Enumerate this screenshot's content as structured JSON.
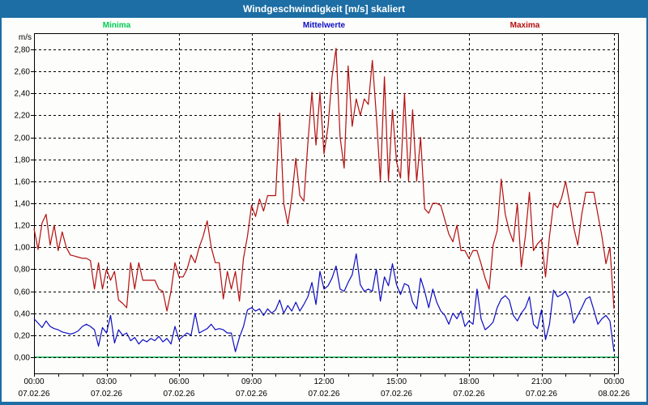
{
  "window": {
    "title": "Windgeschwindigkeit [m/s] skaliert"
  },
  "colors": {
    "titlebar": "#1c6ea4",
    "frame": "#1c6ea4",
    "background": "#fdfdfb",
    "grid": "#000000",
    "minima": "#00b54e",
    "minima_legend": "#00cc55",
    "mittelwerte": "#0d0dc4",
    "maxima": "#b40f0f"
  },
  "legend": [
    {
      "label": "Minima"
    },
    {
      "label": "Mittelwerte"
    },
    {
      "label": "Maxima"
    }
  ],
  "chart_data": {
    "type": "line",
    "title": "Windgeschwindigkeit [m/s] skaliert",
    "xlabel": "",
    "ylabel": "m/s",
    "grid": true,
    "legend_position": "top",
    "ylim": [
      0.0,
      2.8
    ],
    "y_axis": {
      "unit": "m/s",
      "min": 0.0,
      "max": 2.8,
      "tick_step": 0.2,
      "tick_labels": [
        "0,00",
        "0,20",
        "0,40",
        "0,60",
        "0,80",
        "1,00",
        "1,20",
        "1,40",
        "1,60",
        "1,80",
        "2,00",
        "2,20",
        "2,40",
        "2,60",
        "2,80"
      ]
    },
    "x_axis": {
      "minor_tick_hours": 1,
      "ticks": [
        {
          "hour": 0,
          "time": "00:00",
          "date": "07.02.26"
        },
        {
          "hour": 3,
          "time": "03:00",
          "date": "07.02.26"
        },
        {
          "hour": 6,
          "time": "06:00",
          "date": "07.02.26"
        },
        {
          "hour": 9,
          "time": "09:00",
          "date": "07.02.26"
        },
        {
          "hour": 12,
          "time": "12:00",
          "date": "07.02.26"
        },
        {
          "hour": 15,
          "time": "15:00",
          "date": "07.02.26"
        },
        {
          "hour": 18,
          "time": "18:00",
          "date": "07.02.26"
        },
        {
          "hour": 21,
          "time": "21:00",
          "date": "07.02.26"
        },
        {
          "hour": 24,
          "time": "00:00",
          "date": "08.02.26"
        }
      ]
    },
    "sample_interval_minutes": 10,
    "series": [
      {
        "name": "Minima",
        "constant_value": 0.0
      },
      {
        "name": "Mittelwerte",
        "values": [
          0.35,
          0.31,
          0.27,
          0.33,
          0.28,
          0.26,
          0.25,
          0.23,
          0.22,
          0.21,
          0.22,
          0.24,
          0.28,
          0.3,
          0.28,
          0.25,
          0.1,
          0.27,
          0.22,
          0.38,
          0.13,
          0.25,
          0.2,
          0.22,
          0.15,
          0.18,
          0.12,
          0.16,
          0.14,
          0.17,
          0.15,
          0.19,
          0.14,
          0.17,
          0.12,
          0.28,
          0.16,
          0.19,
          0.22,
          0.2,
          0.4,
          0.22,
          0.24,
          0.26,
          0.3,
          0.25,
          0.26,
          0.25,
          0.22,
          0.22,
          0.05,
          0.18,
          0.28,
          0.43,
          0.45,
          0.42,
          0.44,
          0.38,
          0.44,
          0.4,
          0.43,
          0.52,
          0.4,
          0.47,
          0.42,
          0.5,
          0.42,
          0.48,
          0.55,
          0.68,
          0.48,
          0.78,
          0.62,
          0.65,
          0.72,
          0.83,
          0.62,
          0.6,
          0.68,
          0.75,
          0.94,
          0.66,
          0.6,
          0.62,
          0.6,
          0.8,
          0.51,
          0.73,
          0.65,
          0.85,
          0.66,
          0.57,
          0.67,
          0.65,
          0.5,
          0.44,
          0.72,
          0.6,
          0.45,
          0.62,
          0.5,
          0.42,
          0.38,
          0.3,
          0.4,
          0.35,
          0.42,
          0.28,
          0.33,
          0.3,
          0.62,
          0.35,
          0.25,
          0.28,
          0.32,
          0.45,
          0.53,
          0.56,
          0.52,
          0.38,
          0.33,
          0.4,
          0.45,
          0.55,
          0.3,
          0.26,
          0.43,
          0.16,
          0.3,
          0.61,
          0.55,
          0.57,
          0.6,
          0.52,
          0.31,
          0.38,
          0.45,
          0.53,
          0.55,
          0.43,
          0.3,
          0.35,
          0.38,
          0.33,
          0.05
        ]
      },
      {
        "name": "Maxima",
        "values": [
          1.17,
          0.98,
          1.22,
          1.3,
          1.02,
          1.2,
          0.97,
          1.14,
          1.0,
          0.93,
          0.92,
          0.91,
          0.9,
          0.9,
          0.88,
          0.62,
          0.86,
          0.62,
          0.8,
          0.7,
          0.78,
          0.52,
          0.49,
          0.45,
          0.86,
          0.62,
          0.86,
          0.7,
          0.7,
          0.7,
          0.7,
          0.62,
          0.6,
          0.42,
          0.6,
          0.86,
          0.73,
          0.73,
          0.8,
          0.93,
          0.86,
          1.0,
          1.1,
          1.24,
          1.0,
          0.86,
          0.86,
          0.53,
          0.78,
          0.62,
          0.78,
          0.51,
          0.9,
          1.1,
          1.38,
          1.28,
          1.44,
          1.33,
          1.47,
          1.47,
          1.47,
          2.22,
          1.4,
          1.21,
          1.45,
          1.81,
          1.47,
          1.42,
          1.95,
          2.41,
          1.93,
          2.41,
          1.85,
          2.1,
          2.55,
          2.81,
          2.0,
          1.72,
          2.65,
          2.1,
          2.35,
          2.2,
          2.35,
          2.3,
          2.7,
          2.2,
          1.6,
          2.55,
          1.6,
          2.25,
          1.78,
          1.63,
          2.4,
          1.6,
          2.25,
          1.6,
          2.0,
          1.35,
          1.31,
          1.4,
          1.4,
          1.38,
          1.25,
          1.12,
          1.05,
          1.2,
          0.97,
          0.97,
          0.9,
          0.97,
          0.97,
          0.85,
          0.72,
          0.62,
          1.02,
          1.15,
          1.62,
          1.3,
          1.15,
          1.05,
          1.4,
          0.82,
          1.1,
          1.5,
          0.97,
          1.03,
          1.07,
          0.73,
          1.1,
          1.4,
          1.36,
          1.45,
          1.6,
          1.4,
          1.18,
          1.02,
          1.3,
          1.5,
          1.5,
          1.5,
          1.3,
          1.1,
          0.85,
          1.0,
          0.44
        ]
      }
    ]
  }
}
